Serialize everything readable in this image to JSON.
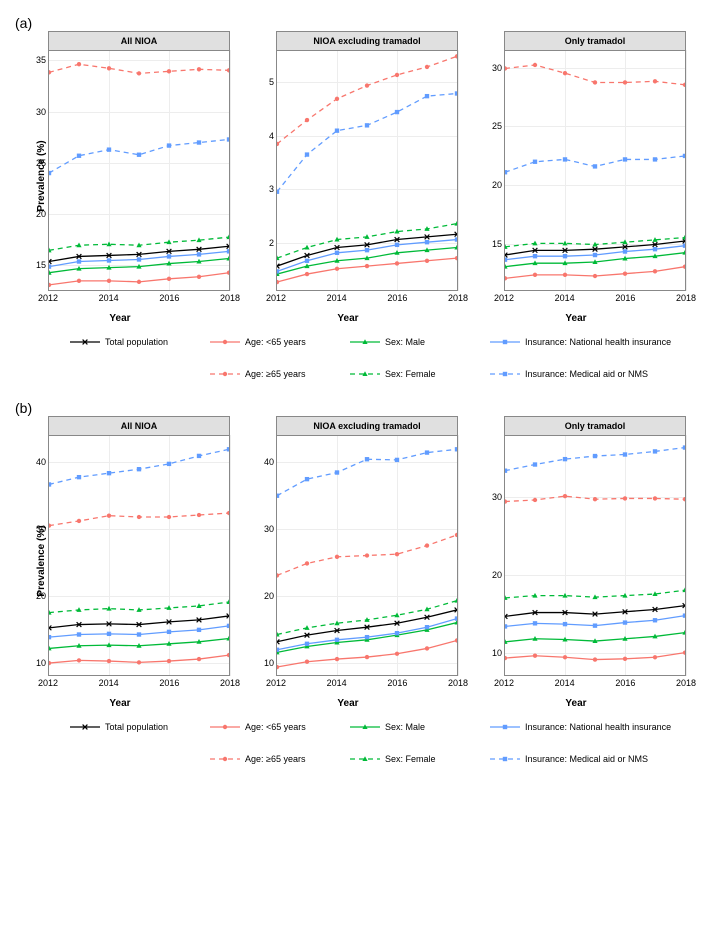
{
  "figure_width": 714,
  "figure_height": 935,
  "background_color": "#ffffff",
  "grid_color": "#ededed",
  "panel_border_color": "#888888",
  "panel_title_bg": "#e0e0e0",
  "panel_title_fontsize": 9,
  "axis_label_fontsize": 10,
  "tick_fontsize": 9,
  "x_values": [
    2012,
    2013,
    2014,
    2015,
    2016,
    2017,
    2018
  ],
  "rows": [
    {
      "label": "(a)",
      "y_label": "Prevalence (%)",
      "x_label": "Year",
      "x_ticks": [
        2012,
        2014,
        2016,
        2018
      ],
      "panels": [
        {
          "title": "All NIOA",
          "y_ticks": [
            15,
            20,
            25,
            30,
            35
          ],
          "ylim": [
            12.5,
            36
          ],
          "series": {
            "total": [
              15.3,
              15.8,
              15.9,
              16.0,
              16.3,
              16.5,
              16.8
            ],
            "age_lt65": [
              13.0,
              13.4,
              13.4,
              13.3,
              13.6,
              13.8,
              14.2
            ],
            "age_ge65": [
              33.9,
              34.7,
              34.3,
              33.8,
              34.0,
              34.2,
              34.1
            ],
            "sex_male": [
              14.2,
              14.6,
              14.7,
              14.8,
              15.1,
              15.3,
              15.6
            ],
            "sex_female": [
              16.4,
              16.9,
              17.0,
              16.9,
              17.2,
              17.4,
              17.7
            ],
            "ins_nhi": [
              14.8,
              15.3,
              15.4,
              15.5,
              15.8,
              16.0,
              16.3
            ],
            "ins_medaid": [
              24.0,
              25.7,
              26.3,
              25.8,
              26.7,
              27.0,
              27.3
            ]
          }
        },
        {
          "title": "NIOA excluding tramadol",
          "y_ticks": [
            2,
            3,
            4,
            5
          ],
          "ylim": [
            1.1,
            5.6
          ],
          "series": {
            "total": [
              1.55,
              1.75,
              1.9,
              1.95,
              2.05,
              2.1,
              2.15
            ],
            "age_lt65": [
              1.25,
              1.4,
              1.5,
              1.55,
              1.6,
              1.65,
              1.7
            ],
            "age_ge65": [
              3.85,
              4.3,
              4.7,
              4.95,
              5.15,
              5.3,
              5.5
            ],
            "sex_male": [
              1.4,
              1.55,
              1.65,
              1.7,
              1.8,
              1.85,
              1.9
            ],
            "sex_female": [
              1.7,
              1.9,
              2.05,
              2.1,
              2.2,
              2.25,
              2.35
            ],
            "ins_nhi": [
              1.45,
              1.65,
              1.8,
              1.85,
              1.95,
              2.0,
              2.05
            ],
            "ins_medaid": [
              2.95,
              3.65,
              4.1,
              4.2,
              4.45,
              4.75,
              4.8
            ]
          }
        },
        {
          "title": "Only tramadol",
          "y_ticks": [
            15,
            20,
            25,
            30
          ],
          "ylim": [
            11,
            31.5
          ],
          "series": {
            "total": [
              14.0,
              14.4,
              14.4,
              14.5,
              14.7,
              14.9,
              15.2
            ],
            "age_lt65": [
              12.0,
              12.3,
              12.3,
              12.2,
              12.4,
              12.6,
              13.0
            ],
            "age_ge65": [
              30.0,
              30.3,
              29.6,
              28.8,
              28.8,
              28.9,
              28.6
            ],
            "sex_male": [
              13.0,
              13.3,
              13.3,
              13.4,
              13.7,
              13.9,
              14.2
            ],
            "sex_female": [
              14.7,
              15.0,
              15.0,
              14.9,
              15.1,
              15.3,
              15.5
            ],
            "ins_nhi": [
              13.6,
              13.9,
              13.9,
              14.0,
              14.3,
              14.5,
              14.8
            ],
            "ins_medaid": [
              21.1,
              22.0,
              22.2,
              21.6,
              22.2,
              22.2,
              22.5
            ]
          }
        }
      ]
    },
    {
      "label": "(b)",
      "y_label": "Prevalence (%)",
      "x_label": "Year",
      "x_ticks": [
        2012,
        2014,
        2016,
        2018
      ],
      "panels": [
        {
          "title": "All NIOA",
          "y_ticks": [
            10,
            20,
            30,
            40
          ],
          "ylim": [
            8,
            44
          ],
          "series": {
            "total": [
              15.1,
              15.6,
              15.7,
              15.6,
              16.0,
              16.3,
              16.9
            ],
            "age_lt65": [
              9.8,
              10.2,
              10.1,
              9.9,
              10.1,
              10.4,
              11.0
            ],
            "age_ge65": [
              30.5,
              31.2,
              32.0,
              31.8,
              31.8,
              32.1,
              32.4
            ],
            "sex_male": [
              12.0,
              12.4,
              12.5,
              12.4,
              12.7,
              13.0,
              13.5
            ],
            "sex_female": [
              17.4,
              17.8,
              18.0,
              17.8,
              18.1,
              18.4,
              19.0
            ],
            "ins_nhi": [
              13.7,
              14.1,
              14.2,
              14.1,
              14.5,
              14.8,
              15.4
            ],
            "ins_medaid": [
              36.7,
              37.8,
              38.4,
              39.0,
              39.8,
              41.0,
              42.0
            ]
          }
        },
        {
          "title": "NIOA excluding tramadol",
          "y_ticks": [
            10,
            20,
            30,
            40
          ],
          "ylim": [
            8,
            44
          ],
          "series": {
            "total": [
              13.0,
              14.0,
              14.7,
              15.2,
              15.8,
              16.7,
              17.8
            ],
            "age_lt65": [
              9.2,
              10.0,
              10.4,
              10.7,
              11.2,
              12.0,
              13.2
            ],
            "age_ge65": [
              23.0,
              24.8,
              25.8,
              26.0,
              26.2,
              27.5,
              29.1
            ],
            "sex_male": [
              11.4,
              12.3,
              12.9,
              13.3,
              14.0,
              14.8,
              15.9
            ],
            "sex_female": [
              14.1,
              15.1,
              15.8,
              16.3,
              17.0,
              17.9,
              19.2
            ],
            "ins_nhi": [
              11.8,
              12.7,
              13.3,
              13.7,
              14.3,
              15.2,
              16.5
            ],
            "ins_medaid": [
              35.0,
              37.5,
              38.5,
              40.5,
              40.4,
              41.5,
              42.0
            ]
          }
        },
        {
          "title": "Only tramadol",
          "y_ticks": [
            10,
            20,
            30
          ],
          "ylim": [
            7,
            38
          ],
          "series": {
            "total": [
              14.6,
              15.1,
              15.1,
              14.9,
              15.2,
              15.5,
              16.0
            ],
            "age_lt65": [
              9.2,
              9.5,
              9.3,
              9.0,
              9.1,
              9.3,
              9.9
            ],
            "age_ge65": [
              29.5,
              29.7,
              30.2,
              29.8,
              29.9,
              29.9,
              29.8
            ],
            "sex_male": [
              11.3,
              11.7,
              11.6,
              11.4,
              11.7,
              12.0,
              12.5
            ],
            "sex_female": [
              17.0,
              17.3,
              17.3,
              17.1,
              17.3,
              17.5,
              18.0
            ],
            "ins_nhi": [
              13.3,
              13.7,
              13.6,
              13.4,
              13.8,
              14.1,
              14.7
            ],
            "ins_medaid": [
              33.5,
              34.3,
              35.0,
              35.4,
              35.6,
              36.0,
              36.5
            ]
          }
        }
      ]
    }
  ],
  "series_style": {
    "total": {
      "color": "#000000",
      "dash": "solid",
      "marker": "x",
      "label": "Total population"
    },
    "age_lt65": {
      "color": "#f8766d",
      "dash": "solid",
      "marker": "circle",
      "label": "Age: <65 years"
    },
    "age_ge65": {
      "color": "#f8766d",
      "dash": "dashed",
      "marker": "circle",
      "label": "Age: ≥65 years"
    },
    "sex_male": {
      "color": "#00ba38",
      "dash": "solid",
      "marker": "triangle",
      "label": "Sex: Male"
    },
    "sex_female": {
      "color": "#00ba38",
      "dash": "dashed",
      "marker": "triangle",
      "label": "Sex: Female"
    },
    "ins_nhi": {
      "color": "#619cff",
      "dash": "solid",
      "marker": "square",
      "label": "Insurance: National health insurance"
    },
    "ins_medaid": {
      "color": "#619cff",
      "dash": "dashed",
      "marker": "square",
      "label": "Insurance: Medical aid or NMS"
    }
  },
  "line_width": 1.3,
  "marker_size": 4,
  "legend_order_row1": [
    "age_lt65",
    "sex_male",
    "ins_nhi"
  ],
  "legend_order_row2": [
    "age_ge65",
    "sex_female",
    "ins_medaid"
  ],
  "legend_total": "total"
}
